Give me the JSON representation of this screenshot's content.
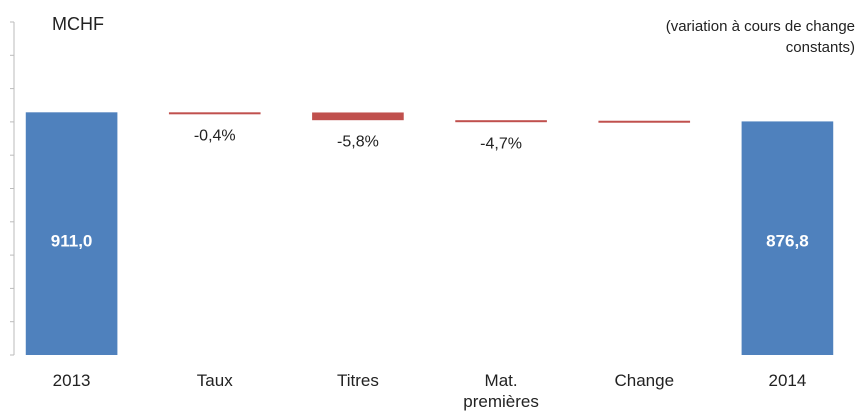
{
  "chart_data": {
    "type": "waterfall",
    "title": "MCHF",
    "subtitle": "(variation à cours de change constants)",
    "categories": [
      "2013",
      "Taux",
      "Titres",
      "Mat. premières",
      "Change",
      "2014"
    ],
    "measure": [
      "absolute",
      "relative",
      "relative",
      "relative",
      "relative",
      "absolute"
    ],
    "values": [
      911.0,
      -0.6,
      -29,
      -2,
      -2.6,
      876.8
    ],
    "value_labels": [
      "911,0",
      null,
      null,
      null,
      null,
      "876,8"
    ],
    "change_labels": [
      null,
      "-0,4%",
      "-5,8%",
      "-4,7%",
      null,
      null
    ],
    "total_color": "#4f81bd",
    "decrease_color": "#c0504d",
    "ylim": [
      0,
      1250
    ],
    "yticks": [
      0,
      125,
      250,
      375,
      500,
      625,
      750,
      875,
      1000,
      1125,
      1250
    ]
  }
}
